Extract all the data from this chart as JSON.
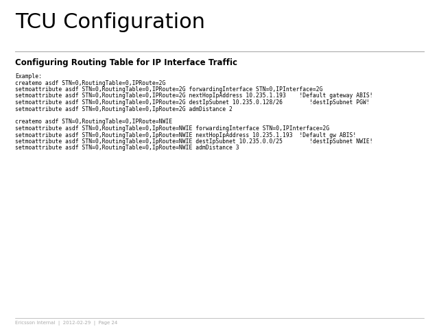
{
  "title": "TCU Configuration",
  "subtitle": "Configuring Routing Table for IP Interface Traffic",
  "bg_color": "#ffffff",
  "title_color": "#000000",
  "subtitle_color": "#000000",
  "text_color": "#000000",
  "footer_color": "#aaaaaa",
  "line_color": "#aaaaaa",
  "ericsson_bg": "#1a3a6b",
  "body_lines": [
    "Example:",
    "createmo asdf STN=0,RoutingTable=0,IPRoute=2G",
    "setmoattribute asdf STN=0,RoutingTable=0,IPRoute=2G forwardingInterface STN=0,IPInterface=2G",
    "setmoattribute asdf STN=0,RoutingTable=0,IPRoute=2G nextHopIpAddress 10.235.1.193    !Default gateway ABIS!",
    "setmoattribute asdf STN=0,RoutingTable=0,IPRoute=2G destIpSubnet 10.235.0.128/26        !destIpSubnet PGW!",
    "setmoattribute asdf STN=0,RoutingTable=0,IpRoute=2G admDistance 2",
    "",
    "createmo asdf STN=0,RoutingTable=0,IPRoute=NWIE",
    "setmoattribute asdf STN=0,RoutingTable=0,IpRoute=NWIE forwardingInterface STN=0,IPInterface=2G",
    "setmoattribute asdf STN=0,RoutingTable=0,IpRoute=NWIE nextHopIpAddress 10.235.1.193  !Default gw ABIS!",
    "setmoattribute asdf STN=0,RoutingTable=0,IpRoute=NWIE destIpSubnet 10.235.0.0/25        !destIpSubnet NWIE!",
    "setmoattribute asdf STN=0,RoutingTable=0,IpRoute=NWIE admDistance 3"
  ],
  "footer_text": "Ericsson Internal  |  2012-02-29  |  Page 24",
  "title_fontsize": 22,
  "subtitle_fontsize": 8.5,
  "body_fontsize": 5.8,
  "footer_fontsize": 5.0
}
